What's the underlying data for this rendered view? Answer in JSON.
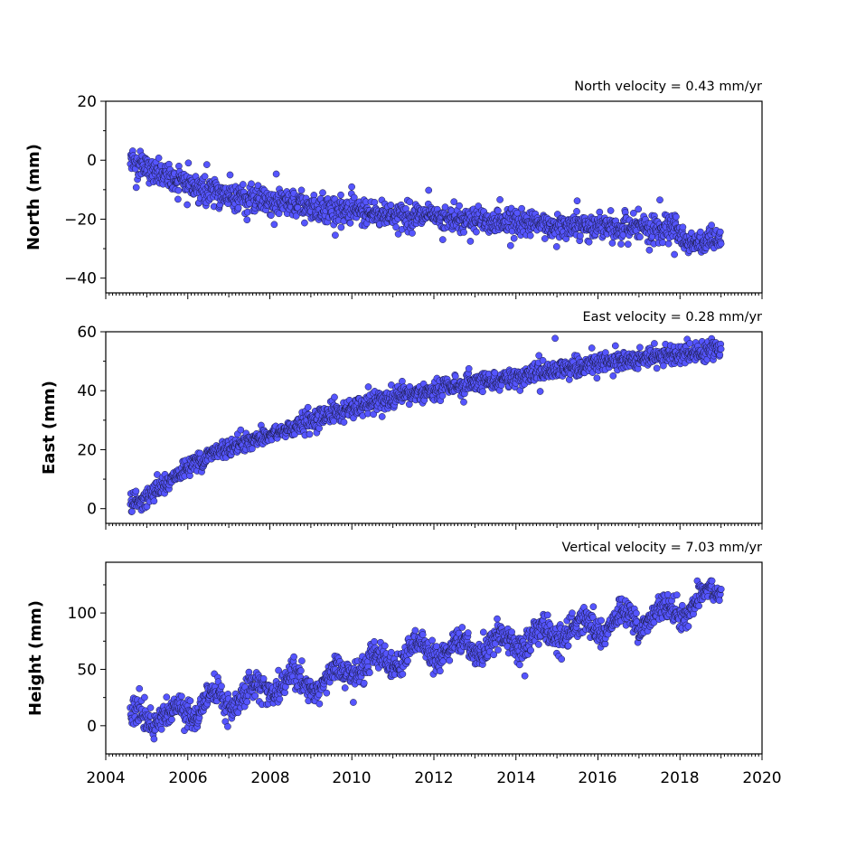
{
  "x_axis": {
    "tick_labels": [
      "2004",
      "2006",
      "2008",
      "2010",
      "2012",
      "2014",
      "2016",
      "2018",
      "2020"
    ]
  },
  "panels": [
    {
      "ylabel": "North (mm)",
      "velocity_text": "North velocity = 0.43 mm/yr",
      "y_tick_labels": [
        "20",
        "0",
        "−20",
        "−40"
      ]
    },
    {
      "ylabel": "East (mm)",
      "velocity_text": "East velocity = 0.28 mm/yr",
      "y_tick_labels": [
        "60",
        "40",
        "20",
        "0"
      ]
    },
    {
      "ylabel": "Height (mm)",
      "velocity_text": "Vertical velocity = 7.03 mm/yr",
      "y_tick_labels": [
        "100",
        "50",
        "0"
      ]
    }
  ],
  "chart_data": [
    {
      "type": "scatter",
      "ylabel": "North (mm)",
      "annotation": "North velocity = 0.43 mm/yr",
      "xlim": [
        2004,
        2020
      ],
      "ylim": [
        -45,
        20
      ],
      "y_ticks": [
        20,
        0,
        -20,
        -40
      ],
      "x_ticks": [
        2004,
        2006,
        2008,
        2010,
        2012,
        2014,
        2016,
        2018,
        2020
      ],
      "marker_color": "#5555ff",
      "x": [
        2004.6,
        2005.0,
        2005.5,
        2006.0,
        2006.5,
        2007.0,
        2007.5,
        2008.0,
        2008.5,
        2009.0,
        2009.5,
        2010.0,
        2010.5,
        2011.0,
        2011.5,
        2012.0,
        2012.5,
        2013.0,
        2013.5,
        2014.0,
        2014.5,
        2015.0,
        2015.5,
        2016.0,
        2016.5,
        2017.0,
        2017.5,
        2017.9,
        2018.1,
        2018.5,
        2019.0
      ],
      "y": [
        1,
        -3,
        -6,
        -8,
        -10,
        -12,
        -13,
        -14,
        -15,
        -16,
        -16.5,
        -17,
        -18,
        -18.5,
        -19,
        -19.5,
        -20,
        -20.5,
        -21,
        -21.5,
        -22,
        -22,
        -22.5,
        -22.5,
        -23,
        -23,
        -23,
        -23,
        -27,
        -28,
        -28
      ],
      "scatter": 2.2
    },
    {
      "type": "scatter",
      "ylabel": "East (mm)",
      "annotation": "East velocity = 0.28 mm/yr",
      "xlim": [
        2004,
        2020
      ],
      "ylim": [
        -5,
        60
      ],
      "y_ticks": [
        60,
        40,
        20,
        0
      ],
      "x_ticks": [
        2004,
        2006,
        2008,
        2010,
        2012,
        2014,
        2016,
        2018,
        2020
      ],
      "marker_color": "#5555ff",
      "x": [
        2004.6,
        2005.0,
        2005.5,
        2006.0,
        2006.5,
        2007.0,
        2007.5,
        2008.0,
        2008.5,
        2009.0,
        2009.5,
        2010.0,
        2010.5,
        2011.0,
        2011.5,
        2012.0,
        2012.5,
        2013.0,
        2013.5,
        2014.0,
        2014.5,
        2015.0,
        2015.5,
        2016.0,
        2016.5,
        2017.0,
        2017.5,
        2018.0,
        2018.5,
        2019.0
      ],
      "y": [
        1,
        4,
        9,
        14,
        18,
        21,
        23,
        25,
        27,
        30,
        32,
        34,
        36,
        37,
        39,
        40,
        41.5,
        42.5,
        43.5,
        44.5,
        46,
        47,
        48,
        49,
        50,
        51,
        52,
        52.5,
        53.5,
        54
      ],
      "scatter": 1.6
    },
    {
      "type": "scatter",
      "ylabel": "Height (mm)",
      "annotation": "Vertical velocity = 7.03 mm/yr",
      "xlim": [
        2004,
        2020
      ],
      "ylim": [
        -25,
        145
      ],
      "y_ticks": [
        100,
        50,
        0
      ],
      "x_ticks": [
        2004,
        2006,
        2008,
        2010,
        2012,
        2014,
        2016,
        2018,
        2020
      ],
      "marker_color": "#5555ff",
      "x": [
        2004.6,
        2005.0,
        2005.5,
        2006.0,
        2006.5,
        2007.0,
        2007.5,
        2008.0,
        2008.5,
        2009.0,
        2009.5,
        2010.0,
        2010.5,
        2011.0,
        2011.5,
        2012.0,
        2012.5,
        2013.0,
        2013.5,
        2014.0,
        2014.5,
        2015.0,
        2015.5,
        2016.0,
        2016.5,
        2017.0,
        2017.5,
        2018.0,
        2018.5,
        2018.9,
        2019.0
      ],
      "y": [
        5,
        12,
        5,
        15,
        18,
        22,
        30,
        35,
        38,
        40,
        40,
        52,
        55,
        60,
        65,
        68,
        68,
        70,
        72,
        75,
        78,
        82,
        85,
        90,
        92,
        96,
        98,
        104,
        110,
        118,
        125
      ],
      "scatter": 6,
      "seasonal_amplitude": 9
    }
  ]
}
